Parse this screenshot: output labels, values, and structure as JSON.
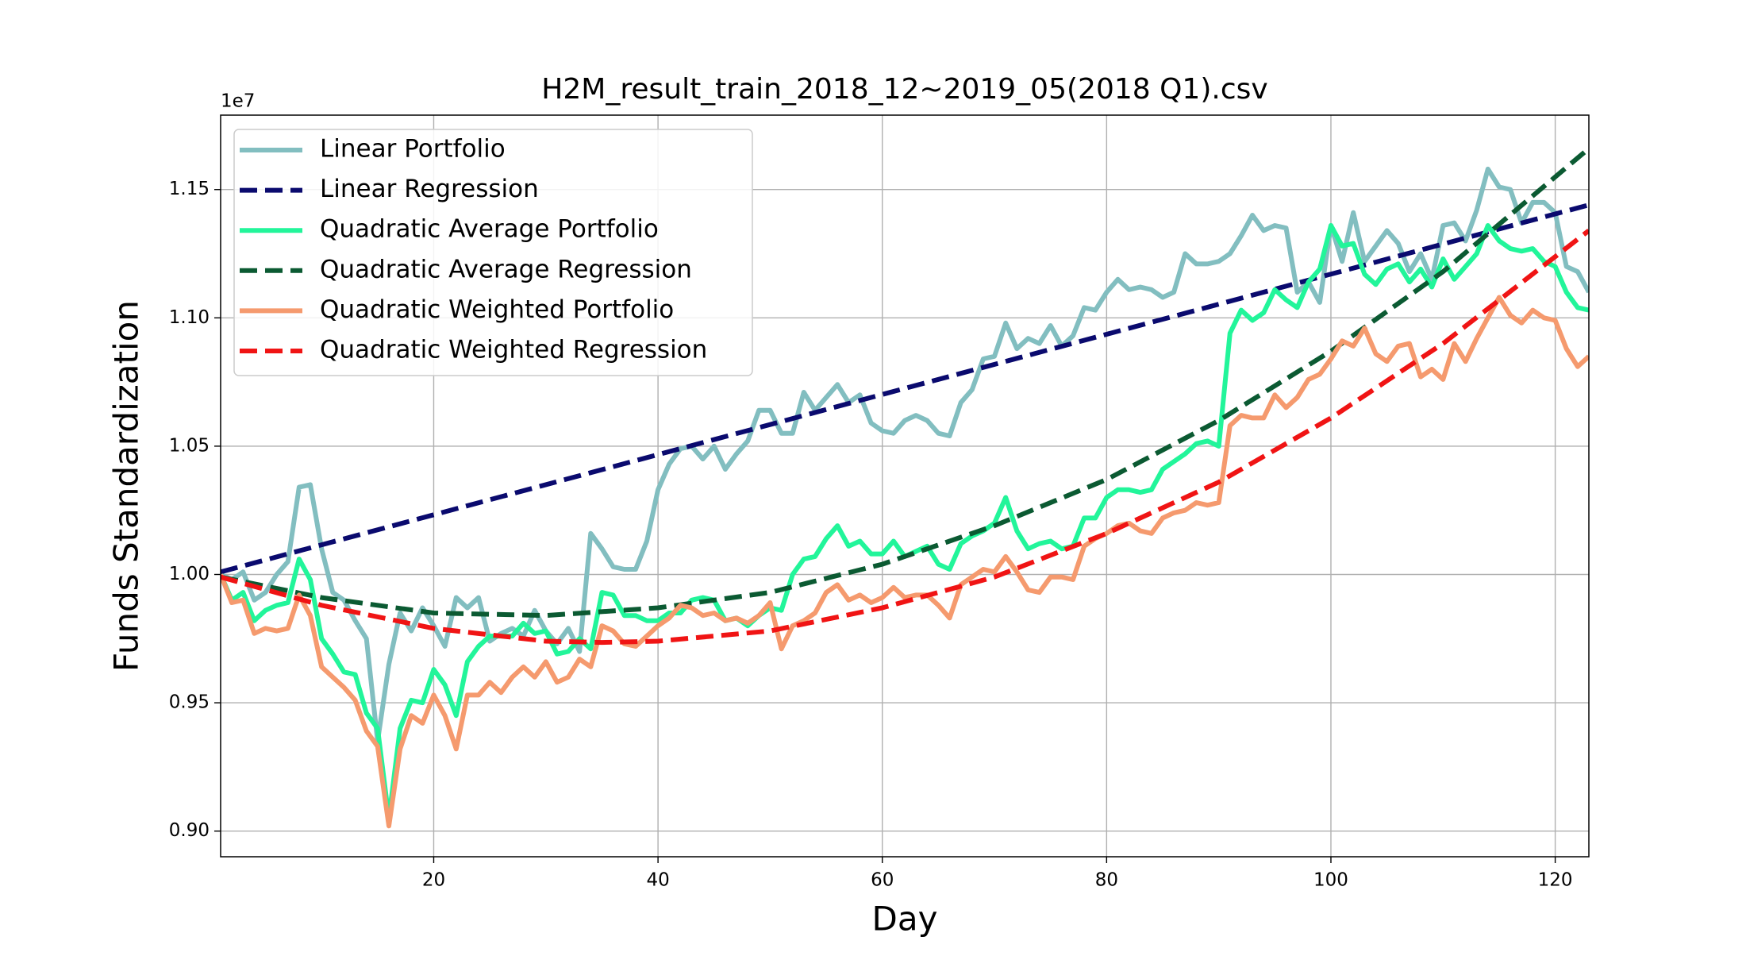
{
  "chart_data": {
    "type": "line",
    "title": "H2M_result_train_2018_12~2019_05(2018 Q1).csv",
    "xlabel": "Day",
    "ylabel": "Funds Standardization",
    "y_offset_label": "1e7",
    "grid": true,
    "legend": "upper left",
    "xlim": [
      1,
      123
    ],
    "xticks": [
      20,
      40,
      60,
      80,
      100,
      120
    ],
    "ylim": [
      0.89,
      1.179
    ],
    "yticks": [
      {
        "value": 0.9,
        "label": "0.90"
      },
      {
        "value": 0.95,
        "label": "0.95"
      },
      {
        "value": 1.0,
        "label": "1.00"
      },
      {
        "value": 1.05,
        "label": "1.05"
      },
      {
        "value": 1.1,
        "label": "1.10"
      },
      {
        "value": 1.15,
        "label": "1.15"
      }
    ],
    "x": [
      1,
      2,
      3,
      4,
      5,
      6,
      7,
      8,
      9,
      10,
      11,
      12,
      13,
      14,
      15,
      16,
      17,
      18,
      19,
      20,
      21,
      22,
      23,
      24,
      25,
      26,
      27,
      28,
      29,
      30,
      31,
      32,
      33,
      34,
      35,
      36,
      37,
      38,
      39,
      40,
      41,
      42,
      43,
      44,
      45,
      46,
      47,
      48,
      49,
      50,
      51,
      52,
      53,
      54,
      55,
      56,
      57,
      58,
      59,
      60,
      61,
      62,
      63,
      64,
      65,
      66,
      67,
      68,
      69,
      70,
      71,
      72,
      73,
      74,
      75,
      76,
      77,
      78,
      79,
      80,
      81,
      82,
      83,
      84,
      85,
      86,
      87,
      88,
      89,
      90,
      91,
      92,
      93,
      94,
      95,
      96,
      97,
      98,
      99,
      100,
      101,
      102,
      103,
      104,
      105,
      106,
      107,
      108,
      109,
      110,
      111,
      112,
      113,
      114,
      115,
      116,
      117,
      118,
      119,
      120,
      121,
      122,
      123
    ],
    "series": [
      {
        "name": "Linear Portfolio",
        "color": "#82bec0",
        "style": "solid",
        "values": [
          1.0,
          0.998,
          1.001,
          0.99,
          0.993,
          1.0,
          1.005,
          1.034,
          1.035,
          1.01,
          0.993,
          0.99,
          0.982,
          0.975,
          0.935,
          0.965,
          0.985,
          0.978,
          0.987,
          0.98,
          0.972,
          0.991,
          0.987,
          0.991,
          0.974,
          0.977,
          0.979,
          0.976,
          0.986,
          0.978,
          0.973,
          0.979,
          0.97,
          1.016,
          1.01,
          1.003,
          1.002,
          1.002,
          1.013,
          1.033,
          1.043,
          1.049,
          1.05,
          1.045,
          1.05,
          1.041,
          1.047,
          1.052,
          1.064,
          1.064,
          1.055,
          1.055,
          1.071,
          1.064,
          1.069,
          1.074,
          1.067,
          1.07,
          1.059,
          1.056,
          1.055,
          1.06,
          1.062,
          1.06,
          1.055,
          1.054,
          1.067,
          1.072,
          1.084,
          1.085,
          1.098,
          1.088,
          1.092,
          1.09,
          1.097,
          1.089,
          1.093,
          1.104,
          1.103,
          1.11,
          1.115,
          1.111,
          1.112,
          1.111,
          1.108,
          1.11,
          1.125,
          1.121,
          1.121,
          1.122,
          1.125,
          1.132,
          1.14,
          1.134,
          1.136,
          1.135,
          1.11,
          1.114,
          1.106,
          1.136,
          1.122,
          1.141,
          1.122,
          1.128,
          1.134,
          1.129,
          1.118,
          1.125,
          1.115,
          1.136,
          1.137,
          1.13,
          1.142,
          1.158,
          1.151,
          1.15,
          1.137,
          1.145,
          1.145,
          1.141,
          1.12,
          1.118,
          1.11
        ]
      },
      {
        "name": "Linear Regression",
        "color": "#0a0a6e",
        "style": "dashed",
        "x": [
          1,
          123
        ],
        "values": [
          1.001,
          1.144
        ]
      },
      {
        "name": "Quadratic Average Portfolio",
        "color": "#22f59a",
        "style": "solid",
        "values": [
          1.0,
          0.99,
          0.993,
          0.982,
          0.986,
          0.988,
          0.989,
          1.006,
          0.998,
          0.975,
          0.969,
          0.962,
          0.961,
          0.946,
          0.94,
          0.905,
          0.94,
          0.951,
          0.95,
          0.963,
          0.957,
          0.945,
          0.966,
          0.972,
          0.976,
          0.976,
          0.976,
          0.981,
          0.977,
          0.978,
          0.969,
          0.97,
          0.975,
          0.971,
          0.993,
          0.992,
          0.984,
          0.984,
          0.982,
          0.982,
          0.985,
          0.985,
          0.99,
          0.991,
          0.99,
          0.982,
          0.983,
          0.98,
          0.984,
          0.987,
          0.986,
          1.0,
          1.006,
          1.007,
          1.014,
          1.019,
          1.011,
          1.013,
          1.008,
          1.008,
          1.013,
          1.007,
          1.009,
          1.011,
          1.004,
          1.002,
          1.012,
          1.015,
          1.017,
          1.02,
          1.03,
          1.017,
          1.01,
          1.012,
          1.013,
          1.01,
          1.011,
          1.022,
          1.022,
          1.03,
          1.033,
          1.033,
          1.032,
          1.033,
          1.041,
          1.044,
          1.047,
          1.051,
          1.052,
          1.05,
          1.094,
          1.103,
          1.099,
          1.102,
          1.111,
          1.107,
          1.104,
          1.114,
          1.119,
          1.136,
          1.128,
          1.129,
          1.117,
          1.113,
          1.119,
          1.121,
          1.114,
          1.119,
          1.112,
          1.123,
          1.115,
          1.12,
          1.125,
          1.136,
          1.13,
          1.127,
          1.126,
          1.127,
          1.122,
          1.12,
          1.11,
          1.104,
          1.103
        ]
      },
      {
        "name": "Quadratic Average Regression",
        "color": "#0b5a32",
        "style": "dashed",
        "x": [
          1,
          10,
          20,
          30,
          40,
          50,
          60,
          70,
          80,
          90,
          100,
          110,
          123
        ],
        "values": [
          0.999,
          0.991,
          0.985,
          0.984,
          0.987,
          0.993,
          1.004,
          1.019,
          1.037,
          1.06,
          1.087,
          1.118,
          1.166
        ]
      },
      {
        "name": "Quadratic Weighted Portfolio",
        "color": "#f59a6e",
        "style": "solid",
        "values": [
          1.0,
          0.989,
          0.99,
          0.977,
          0.979,
          0.978,
          0.979,
          0.992,
          0.984,
          0.964,
          0.96,
          0.956,
          0.951,
          0.939,
          0.933,
          0.902,
          0.932,
          0.945,
          0.942,
          0.953,
          0.945,
          0.932,
          0.953,
          0.953,
          0.958,
          0.954,
          0.96,
          0.964,
          0.96,
          0.966,
          0.958,
          0.96,
          0.967,
          0.964,
          0.98,
          0.978,
          0.973,
          0.972,
          0.976,
          0.98,
          0.983,
          0.988,
          0.987,
          0.984,
          0.985,
          0.982,
          0.983,
          0.981,
          0.984,
          0.989,
          0.971,
          0.98,
          0.982,
          0.985,
          0.993,
          0.996,
          0.99,
          0.992,
          0.989,
          0.991,
          0.995,
          0.991,
          0.992,
          0.992,
          0.988,
          0.983,
          0.996,
          0.999,
          1.002,
          1.001,
          1.007,
          1.001,
          0.994,
          0.993,
          0.999,
          0.999,
          0.998,
          1.011,
          1.014,
          1.016,
          1.019,
          1.02,
          1.017,
          1.016,
          1.022,
          1.024,
          1.025,
          1.028,
          1.027,
          1.028,
          1.058,
          1.062,
          1.061,
          1.061,
          1.07,
          1.065,
          1.069,
          1.076,
          1.078,
          1.084,
          1.091,
          1.089,
          1.096,
          1.086,
          1.083,
          1.089,
          1.09,
          1.077,
          1.08,
          1.076,
          1.09,
          1.083,
          1.092,
          1.1,
          1.108,
          1.101,
          1.098,
          1.103,
          1.1,
          1.099,
          1.088,
          1.081,
          1.085
        ]
      },
      {
        "name": "Quadratic Weighted Regression",
        "color": "#f01414",
        "style": "dashed",
        "x": [
          1,
          10,
          20,
          30,
          35,
          40,
          50,
          60,
          70,
          80,
          90,
          100,
          110,
          123
        ],
        "values": [
          0.999,
          0.988,
          0.979,
          0.974,
          0.9735,
          0.974,
          0.978,
          0.987,
          0.999,
          1.016,
          1.036,
          1.061,
          1.09,
          1.134
        ]
      }
    ]
  }
}
